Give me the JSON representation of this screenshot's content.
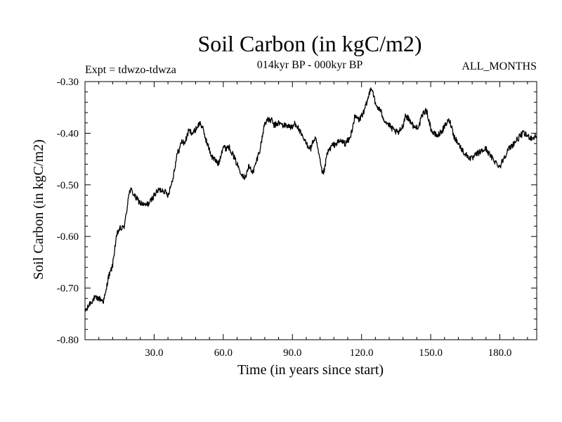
{
  "chart_data": {
    "type": "line",
    "title": "Soil Carbon (in kgC/m2)",
    "subtitle": "014kyr BP - 000kyr BP",
    "experiment": "Expt = tdwzo-tdwza",
    "season": "ALL_MONTHS",
    "xlabel": "Time (in years since start)",
    "ylabel": "Soil Carbon (in kgC/m2)",
    "xlim": [
      0,
      196
    ],
    "ylim": [
      -0.8,
      -0.3
    ],
    "x_ticks": [
      30,
      60,
      90,
      120,
      150,
      180
    ],
    "x_tick_labels": [
      "30.0",
      "60.0",
      "90.0",
      "120.0",
      "150.0",
      "180.0"
    ],
    "y_ticks": [
      -0.8,
      -0.7,
      -0.6,
      -0.5,
      -0.4,
      -0.3
    ],
    "y_tick_labels": [
      "-0.80",
      "-0.70",
      "-0.60",
      "-0.50",
      "-0.40",
      "-0.30"
    ],
    "grid": false,
    "series": [
      {
        "name": "Soil Carbon",
        "color": "#000000",
        "x": [
          0,
          1,
          2,
          4,
          6,
          8,
          9,
          10,
          11,
          12,
          13,
          14,
          15,
          16,
          17,
          18,
          19,
          20,
          22,
          23,
          24,
          26,
          28,
          30,
          32,
          34,
          36,
          38,
          40,
          41,
          42,
          43,
          44,
          45,
          47,
          49,
          50,
          51,
          53,
          55,
          57,
          58,
          59,
          60,
          61,
          62,
          63,
          65,
          67,
          69,
          70,
          71,
          73,
          74,
          76,
          77,
          78,
          79,
          81,
          82,
          84,
          86,
          88,
          90,
          91,
          92,
          94,
          96,
          97,
          98,
          99,
          100,
          101,
          102,
          103,
          104,
          105,
          107,
          109,
          111,
          113,
          115,
          117,
          118,
          119,
          120,
          121,
          122,
          123,
          124,
          125,
          126,
          127,
          128,
          130,
          132,
          134,
          136,
          138,
          139,
          141,
          143,
          145,
          146,
          147,
          148,
          149,
          150,
          151,
          153,
          155,
          157,
          158,
          159,
          160,
          162,
          164,
          166,
          168,
          170,
          172,
          174,
          176,
          178,
          180,
          181,
          182,
          184,
          186,
          188,
          190,
          192,
          194,
          196
        ],
        "values": [
          -0.745,
          -0.74,
          -0.73,
          -0.72,
          -0.72,
          -0.725,
          -0.71,
          -0.68,
          -0.67,
          -0.655,
          -0.62,
          -0.595,
          -0.585,
          -0.585,
          -0.58,
          -0.555,
          -0.515,
          -0.51,
          -0.525,
          -0.53,
          -0.535,
          -0.54,
          -0.535,
          -0.52,
          -0.51,
          -0.51,
          -0.52,
          -0.49,
          -0.44,
          -0.43,
          -0.415,
          -0.42,
          -0.41,
          -0.395,
          -0.4,
          -0.385,
          -0.38,
          -0.39,
          -0.42,
          -0.445,
          -0.455,
          -0.46,
          -0.44,
          -0.425,
          -0.43,
          -0.425,
          -0.43,
          -0.45,
          -0.47,
          -0.485,
          -0.48,
          -0.465,
          -0.475,
          -0.46,
          -0.43,
          -0.405,
          -0.38,
          -0.375,
          -0.375,
          -0.385,
          -0.38,
          -0.385,
          -0.385,
          -0.39,
          -0.38,
          -0.385,
          -0.405,
          -0.42,
          -0.425,
          -0.43,
          -0.415,
          -0.41,
          -0.43,
          -0.455,
          -0.48,
          -0.47,
          -0.44,
          -0.425,
          -0.42,
          -0.415,
          -0.42,
          -0.41,
          -0.37,
          -0.37,
          -0.375,
          -0.365,
          -0.36,
          -0.345,
          -0.33,
          -0.31,
          -0.32,
          -0.345,
          -0.35,
          -0.355,
          -0.375,
          -0.385,
          -0.395,
          -0.4,
          -0.385,
          -0.365,
          -0.375,
          -0.39,
          -0.385,
          -0.37,
          -0.36,
          -0.355,
          -0.37,
          -0.39,
          -0.4,
          -0.405,
          -0.395,
          -0.38,
          -0.375,
          -0.385,
          -0.405,
          -0.42,
          -0.435,
          -0.445,
          -0.45,
          -0.44,
          -0.435,
          -0.43,
          -0.445,
          -0.455,
          -0.465,
          -0.455,
          -0.445,
          -0.43,
          -0.42,
          -0.41,
          -0.4,
          -0.405,
          -0.41,
          -0.405
        ]
      }
    ]
  }
}
